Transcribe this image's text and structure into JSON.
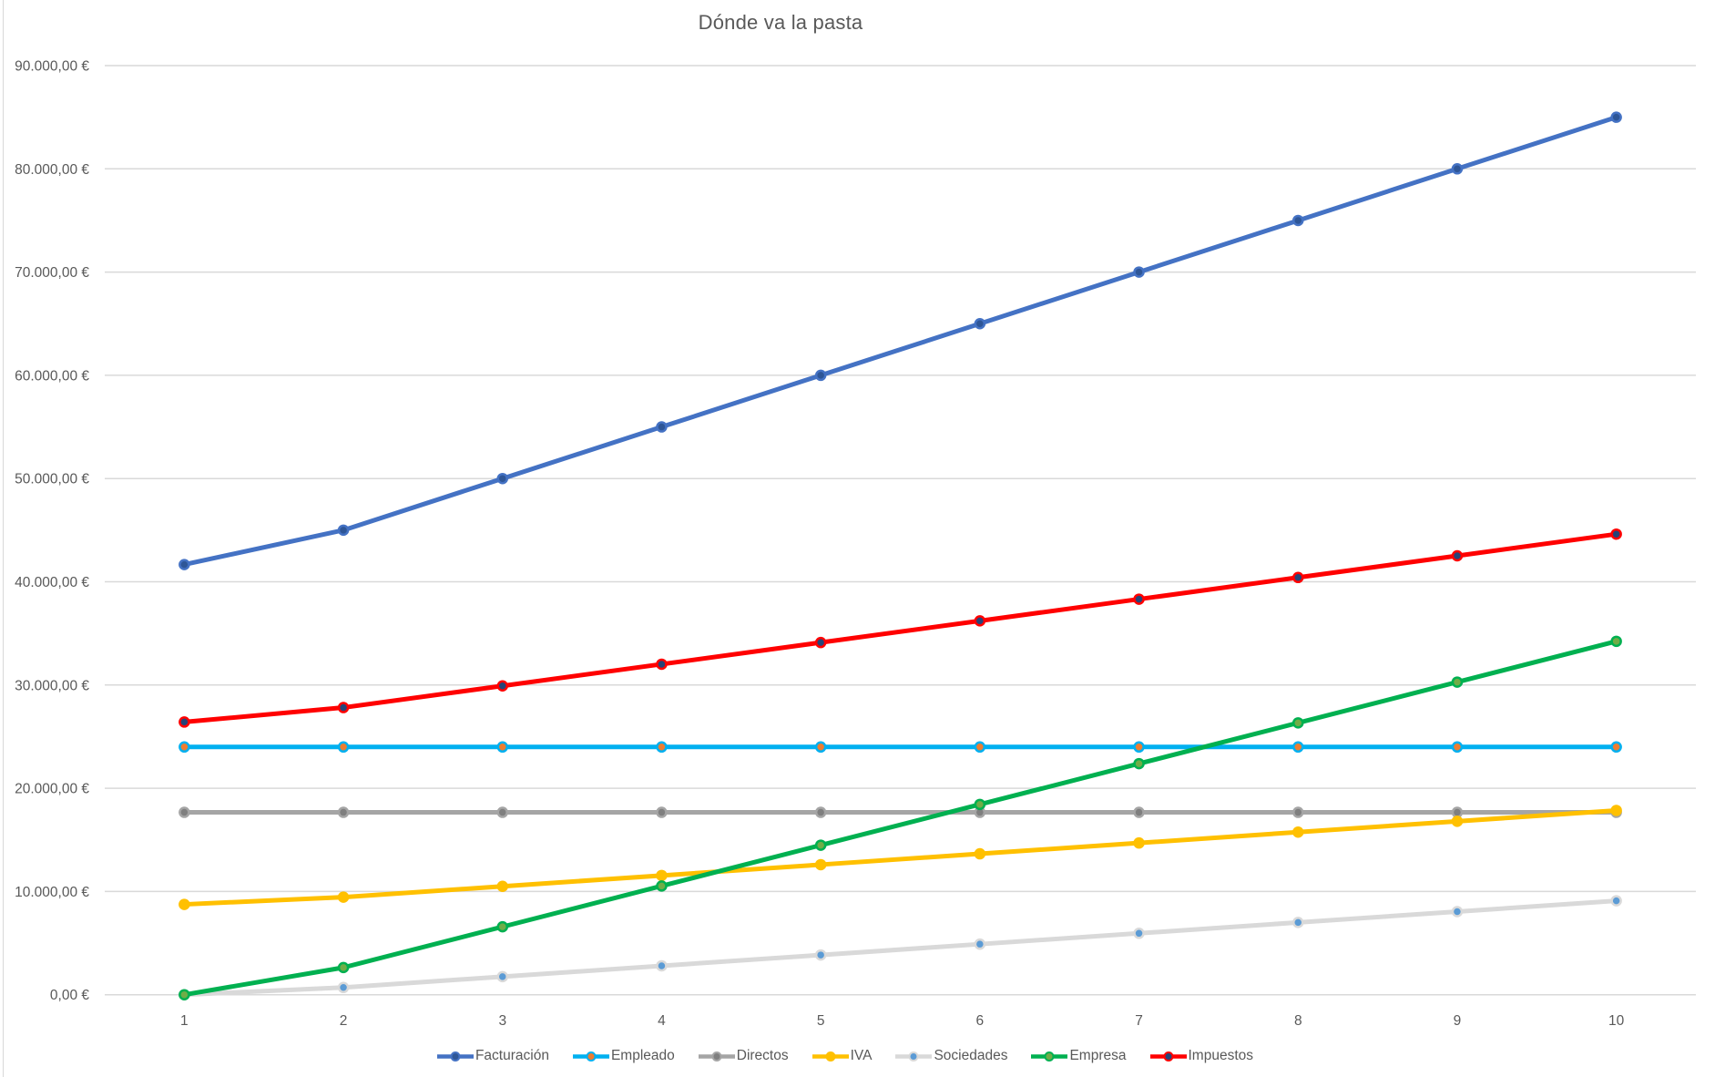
{
  "chart_data": {
    "type": "line",
    "title": "Dónde va la pasta",
    "categories": [
      "1",
      "2",
      "3",
      "4",
      "5",
      "6",
      "7",
      "8",
      "9",
      "10"
    ],
    "grid": true,
    "legend_position": "bottom",
    "y_axis": {
      "min": 0,
      "max": 90000,
      "step": 10000,
      "tick_labels": [
        "0,00 €",
        "10.000,00 €",
        "20.000,00 €",
        "30.000,00 €",
        "40.000,00 €",
        "50.000,00 €",
        "60.000,00 €",
        "70.000,00 €",
        "80.000,00 €",
        "90.000,00 €"
      ]
    },
    "series": [
      {
        "name": "Facturación",
        "line_color": "#4472C4",
        "marker_color": "#2E5697",
        "values": [
          41666.67,
          45000,
          50000,
          55000,
          60000,
          65000,
          70000,
          75000,
          80000,
          85000
        ]
      },
      {
        "name": "Empleado",
        "line_color": "#00B0F0",
        "marker_color": "#ED7D31",
        "values": [
          24000,
          24000,
          24000,
          24000,
          24000,
          24000,
          24000,
          24000,
          24000,
          24000
        ]
      },
      {
        "name": "Directos",
        "line_color": "#A5A5A5",
        "marker_color": "#7F7F7F",
        "values": [
          17666.67,
          17666.67,
          17666.67,
          17666.67,
          17666.67,
          17666.67,
          17666.67,
          17666.67,
          17666.67,
          17666.67
        ]
      },
      {
        "name": "IVA",
        "line_color": "#FFC000",
        "marker_color": "#FFC000",
        "values": [
          8750,
          9450,
          10500,
          11550,
          12600,
          13650,
          14700,
          15750,
          16800,
          17850
        ]
      },
      {
        "name": "Sociedades",
        "line_color": "#D9D9D9",
        "marker_color": "#5B9BD5",
        "values": [
          0,
          700,
          1750,
          2800,
          3850,
          4900,
          5950,
          7000,
          8050,
          9100
        ]
      },
      {
        "name": "Empresa",
        "line_color": "#00B050",
        "marker_color": "#70AD47",
        "values": [
          0,
          2633.33,
          6583.33,
          10533.33,
          14483.33,
          18433.33,
          22383.33,
          26333.33,
          30283.33,
          34233.33
        ]
      },
      {
        "name": "Impuestos",
        "line_color": "#FF0000",
        "marker_color": "#264478",
        "values": [
          26416.67,
          27816.67,
          29916.67,
          32016.67,
          34116.67,
          36216.67,
          38316.67,
          40416.67,
          42516.67,
          44616.67
        ]
      }
    ],
    "colors": {
      "background": "#FFFFFF",
      "gridline": "#D9D9D9",
      "axis_text": "#595959",
      "title_text": "#595959"
    }
  }
}
